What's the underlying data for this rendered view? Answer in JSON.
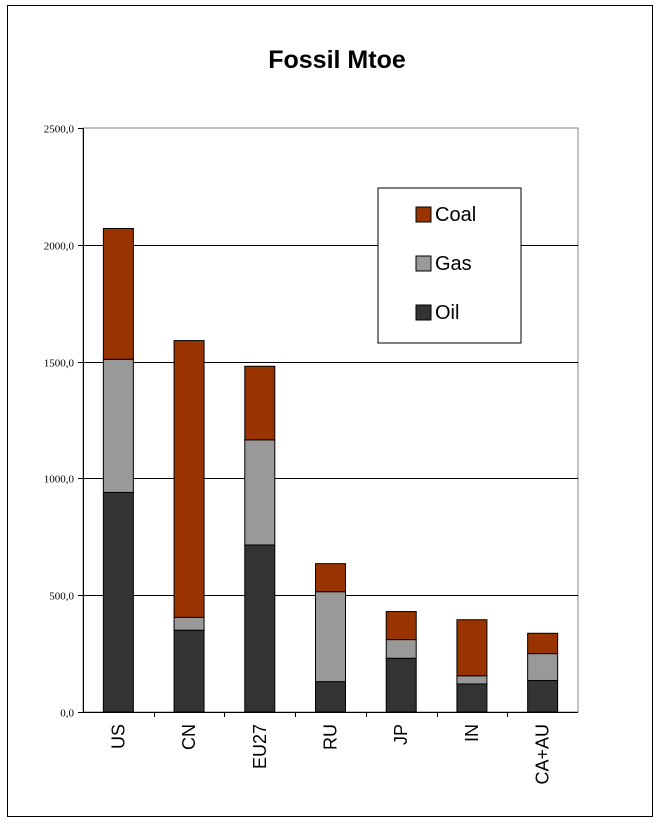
{
  "chart_data": {
    "type": "bar",
    "stacked": true,
    "title": "Fossil Mtoe",
    "xlabel": "",
    "ylabel": "",
    "ylim": [
      0,
      2500
    ],
    "yticks": [
      "0,0",
      "500,0",
      "1000,0",
      "1500,0",
      "2000,0",
      "2500,0"
    ],
    "grid": true,
    "legend_position": "top-right",
    "categories": [
      "US",
      "CN",
      "EU27",
      "RU",
      "JP",
      "IN",
      "CA+AU"
    ],
    "series": [
      {
        "name": "Oil",
        "color": "#333333",
        "values": [
          940,
          350,
          715,
          130,
          230,
          120,
          135
        ]
      },
      {
        "name": "Gas",
        "color": "#999999",
        "values": [
          570,
          55,
          450,
          385,
          80,
          35,
          115
        ]
      },
      {
        "name": "Coal",
        "color": "#993300",
        "values": [
          560,
          1185,
          315,
          120,
          120,
          240,
          87
        ]
      }
    ],
    "legend_order": [
      "Coal",
      "Gas",
      "Oil"
    ]
  }
}
